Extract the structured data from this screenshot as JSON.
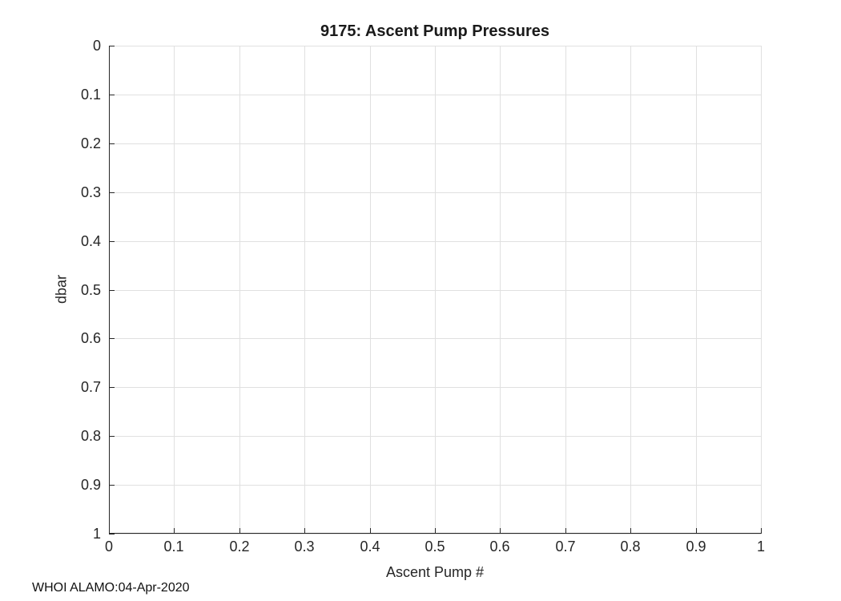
{
  "figure": {
    "background": "#ffffff"
  },
  "chart_data": {
    "type": "line",
    "title": "9175: Ascent Pump Pressures",
    "xlabel": "Ascent Pump #",
    "ylabel": "dbar",
    "xlim": [
      0,
      1
    ],
    "ylim": [
      0,
      1
    ],
    "ydir": "reverse",
    "grid": true,
    "box": false,
    "legend": null,
    "xticks": [
      0,
      0.1,
      0.2,
      0.3,
      0.4,
      0.5,
      0.6,
      0.7,
      0.8,
      0.9,
      1
    ],
    "xtick_labels": [
      "0",
      "0.1",
      "0.2",
      "0.3",
      "0.4",
      "0.5",
      "0.6",
      "0.7",
      "0.8",
      "0.9",
      "1"
    ],
    "yticks": [
      0,
      0.1,
      0.2,
      0.3,
      0.4,
      0.5,
      0.6,
      0.7,
      0.8,
      0.9,
      1
    ],
    "ytick_labels": [
      "0",
      "0.1",
      "0.2",
      "0.3",
      "0.4",
      "0.5",
      "0.6",
      "0.7",
      "0.8",
      "0.9",
      "1"
    ],
    "series": [],
    "annotation": "WHOI ALAMO:04-Apr-2020",
    "colors": {
      "axis": "#262626",
      "grid": "#e0e0e0",
      "text": "#262626",
      "title": "#1a1a1a",
      "background": "#ffffff"
    }
  }
}
